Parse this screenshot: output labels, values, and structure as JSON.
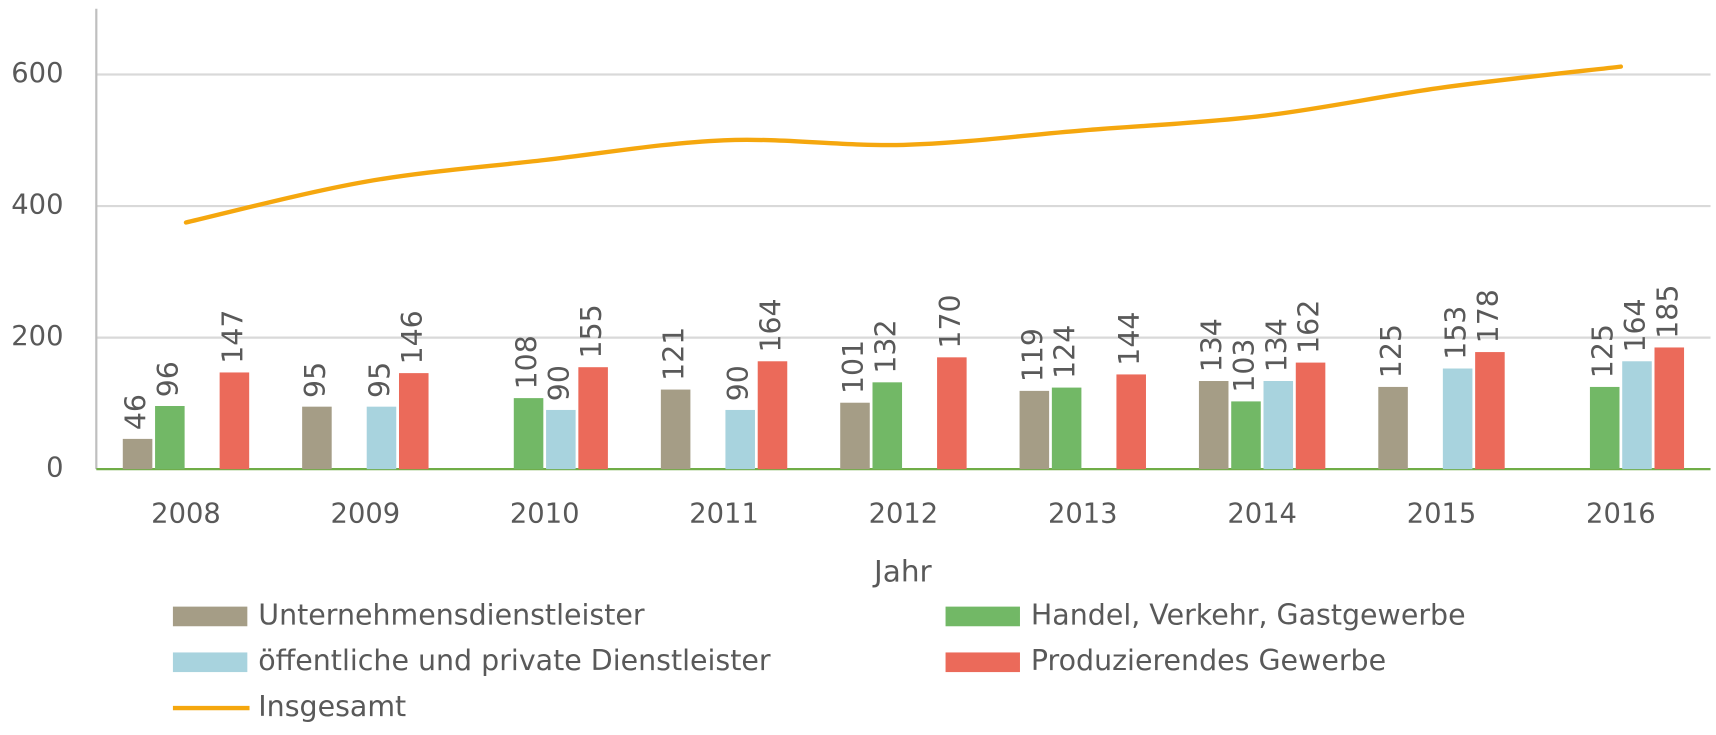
{
  "chart_data": {
    "type": "bar",
    "x_label": "Jahr",
    "categories": [
      "2008",
      "2009",
      "2010",
      "2011",
      "2012",
      "2013",
      "2014",
      "2015",
      "2016"
    ],
    "series": [
      {
        "name": "Unternehmensdienstleister",
        "color": "#a59d86",
        "values": [
          46,
          95,
          null,
          121,
          101,
          119,
          134,
          125,
          null
        ]
      },
      {
        "name": "Handel, Verkehr, Gastgewerbe",
        "color": "#72b866",
        "values": [
          96,
          null,
          108,
          null,
          132,
          124,
          103,
          null,
          125
        ]
      },
      {
        "name": "öffentliche und private Dienstleister",
        "color": "#a8d3de",
        "values": [
          null,
          95,
          90,
          90,
          null,
          null,
          134,
          153,
          164
        ]
      },
      {
        "name": "Produzierendes Gewerbe",
        "color": "#eb6a5a",
        "values": [
          147,
          146,
          155,
          164,
          170,
          144,
          162,
          178,
          185
        ]
      },
      {
        "name": "Insgesamt",
        "type": "line",
        "color": "#f5a70e",
        "values": [
          375,
          437,
          470,
          500,
          493,
          515,
          537,
          580,
          612
        ]
      }
    ],
    "ylim": [
      0,
      700
    ],
    "yticks": [
      0,
      200,
      400,
      600
    ],
    "grid": true
  }
}
